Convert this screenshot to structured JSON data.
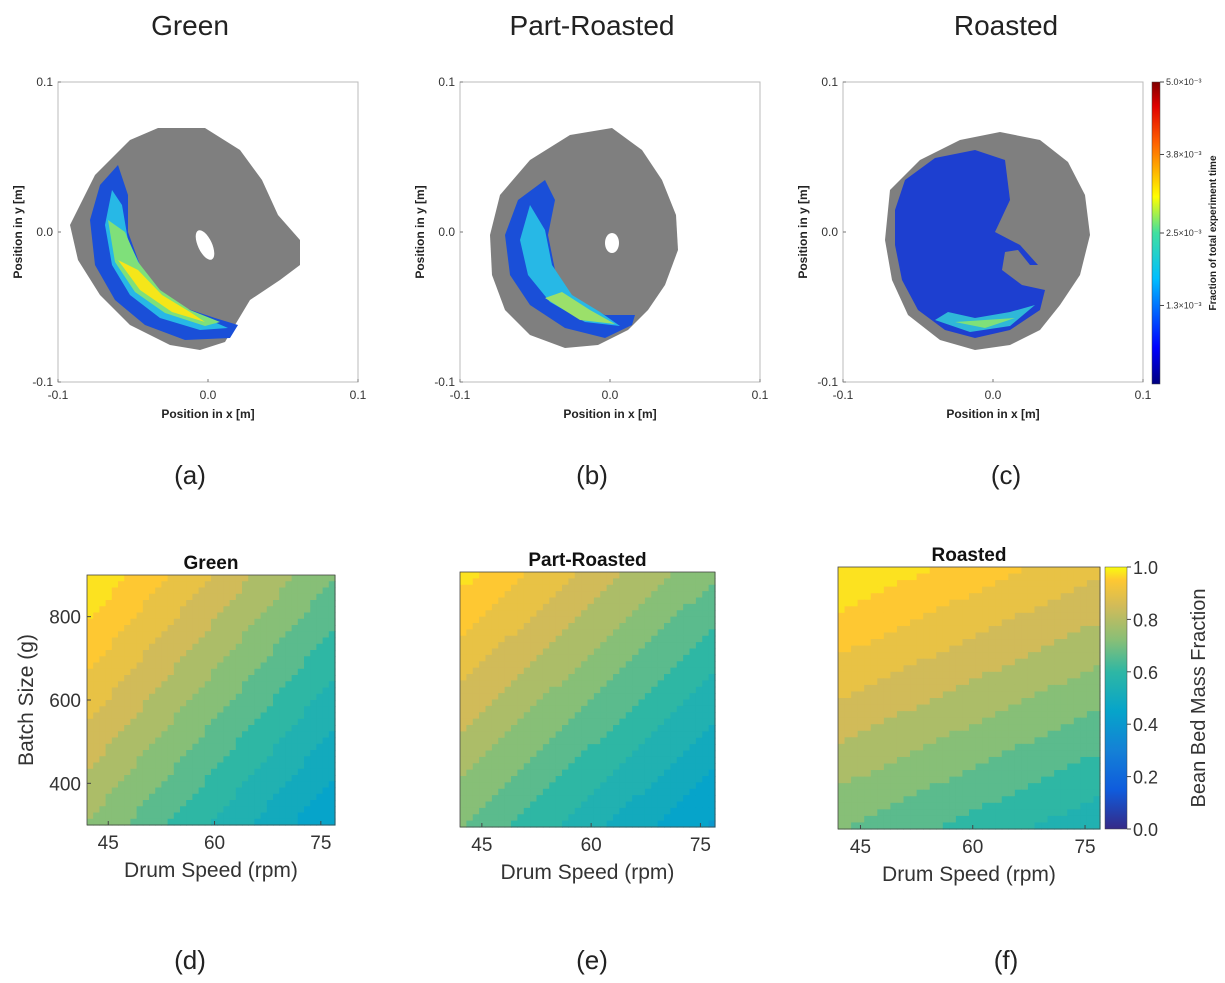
{
  "top_titles": [
    "Green",
    "Part-Roasted",
    "Roasted"
  ],
  "panel_labels": [
    "(a)",
    "(b)",
    "(c)",
    "(d)",
    "(e)",
    "(f)"
  ],
  "colors": {
    "gray_region": "#7f7f7f",
    "hole": "#ffffff",
    "axis": "#333333"
  },
  "chart_data": [
    {
      "type": "heatmap",
      "panel": "(a)",
      "title": "Green",
      "xlabel": "Position in x [m]",
      "ylabel": "Position in y [m]",
      "xlim": [
        -0.1,
        0.1
      ],
      "ylim": [
        -0.1,
        0.1
      ],
      "xticks": [
        "-0.1",
        "0.0",
        "0.1"
      ],
      "yticks": [
        "-0.1",
        "0.0",
        "0.1"
      ],
      "note_values": "residence-time fraction map; peak along lower-left arc"
    },
    {
      "type": "heatmap",
      "panel": "(b)",
      "title": "Part-Roasted",
      "xlabel": "Position in x [m]",
      "ylabel": "Position in y [m]",
      "xlim": [
        -0.1,
        0.1
      ],
      "ylim": [
        -0.1,
        0.1
      ],
      "xticks": [
        "-0.1",
        "0.0",
        "0.1"
      ],
      "yticks": [
        "-0.1",
        "0.0",
        "0.1"
      ]
    },
    {
      "type": "heatmap",
      "panel": "(c)",
      "title": "Roasted",
      "xlabel": "Position in x [m]",
      "ylabel": "Position in y [m]",
      "xlim": [
        -0.1,
        0.1
      ],
      "ylim": [
        -0.1,
        0.1
      ],
      "xticks": [
        "-0.1",
        "0.0",
        "0.1"
      ],
      "yticks": [
        "-0.1",
        "0.0",
        "0.1"
      ],
      "colorbar": {
        "label": "Fraction of total experiment time",
        "ticks": [
          "5.0×10⁻³",
          "3.8×10⁻³",
          "2.5×10⁻³",
          "1.3×10⁻³"
        ],
        "tick_values": [
          0.005,
          0.0038,
          0.0025,
          0.0013
        ],
        "range": [
          0,
          0.005
        ]
      }
    },
    {
      "type": "heatmap",
      "panel": "(d)",
      "title": "Green",
      "xlabel": "Drum Speed (rpm)",
      "ylabel": "Batch Size (g)",
      "xlim": [
        42,
        77
      ],
      "ylim": [
        300,
        900
      ],
      "xticks": [
        45,
        60,
        75
      ],
      "yticks": [
        400,
        600,
        800
      ],
      "levels_at_corners": {
        "x42_y900": 0.85,
        "x77_y900": 0.65,
        "x42_y300": 0.65,
        "x77_y300": 0.45
      },
      "field": {
        "base": 0.72,
        "x_coef": -0.0085,
        "y_coef": 0.00042,
        "x_ref": 60,
        "y_ref": 600
      }
    },
    {
      "type": "heatmap",
      "panel": "(e)",
      "title": "Part-Roasted",
      "xlabel": "Drum Speed (rpm)",
      "ylabel": "",
      "xlim": [
        42,
        77
      ],
      "ylim": [
        300,
        900
      ],
      "xticks": [
        45,
        60,
        75
      ],
      "yticks": [],
      "field": {
        "base": 0.7,
        "x_coef": -0.0075,
        "y_coef": 0.00045,
        "x_ref": 60,
        "y_ref": 600
      }
    },
    {
      "type": "heatmap",
      "panel": "(f)",
      "title": "Roasted",
      "xlabel": "Drum Speed (rpm)",
      "ylabel": "",
      "xlim": [
        42,
        77
      ],
      "ylim": [
        300,
        900
      ],
      "xticks": [
        45,
        60,
        75
      ],
      "yticks": [],
      "field": {
        "base": 0.78,
        "x_coef": -0.004,
        "y_coef": 0.0005,
        "x_ref": 60,
        "y_ref": 600
      },
      "colorbar": {
        "label": "Bean Bed Mass Fraction",
        "ticks": [
          "0.0",
          "0.2",
          "0.4",
          "0.6",
          "0.8",
          "1.0"
        ],
        "range": [
          0,
          1
        ]
      }
    }
  ]
}
